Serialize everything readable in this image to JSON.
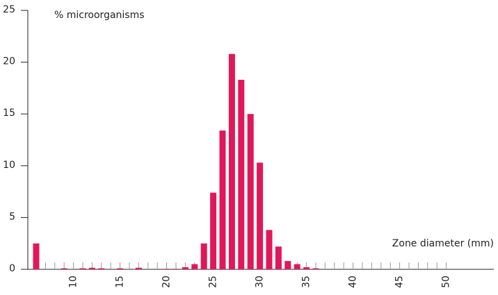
{
  "chart_data": {
    "type": "bar",
    "title": "% microorganisms",
    "x_label": "Zone diameter (mm)",
    "categories": [
      null,
      null,
      null,
      null,
      "10",
      null,
      null,
      null,
      null,
      "15",
      null,
      null,
      null,
      null,
      "20",
      null,
      null,
      null,
      null,
      "25",
      null,
      null,
      null,
      null,
      "30",
      null,
      null,
      null,
      null,
      "35",
      null,
      null,
      null,
      null,
      "40",
      null,
      null,
      null,
      null,
      "45",
      null,
      null,
      null,
      null,
      "50"
    ],
    "values": [
      2.5,
      0,
      0,
      0.1,
      0,
      0.1,
      0.15,
      0.1,
      0,
      0.1,
      0,
      0.15,
      0,
      0,
      0.05,
      0.05,
      0.2,
      0.5,
      2.5,
      7.4,
      13.4,
      20.8,
      18.3,
      15.0,
      10.3,
      3.8,
      2.2,
      0.8,
      0.5,
      0.2,
      0.1,
      0,
      0,
      0,
      0,
      0,
      0,
      0,
      0,
      0,
      0,
      0,
      0,
      0,
      0
    ],
    "color": "#e0185a",
    "ylim": [
      0,
      25
    ],
    "yticks": [
      0,
      5,
      10,
      15,
      20,
      25
    ]
  }
}
